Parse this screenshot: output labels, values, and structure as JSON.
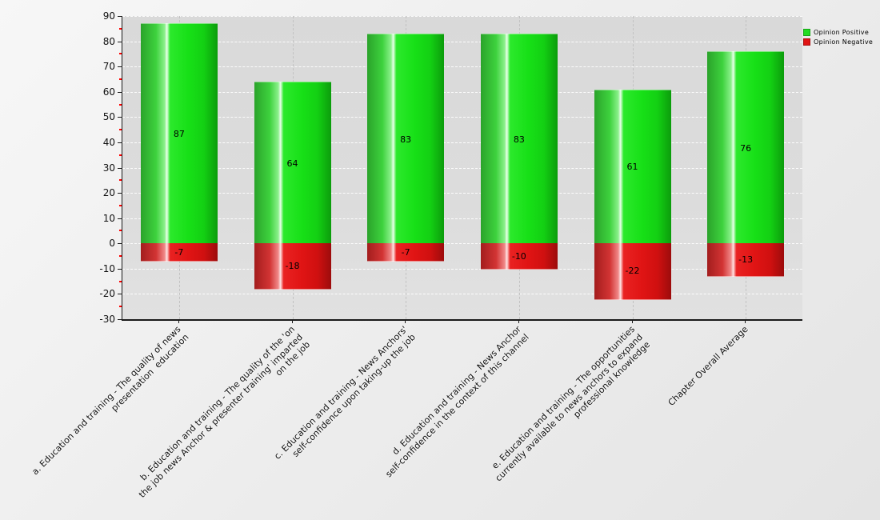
{
  "chart_data": {
    "type": "bar",
    "subtype": "stacked-positive-negative",
    "title": "",
    "xlabel": "",
    "ylabel": "",
    "ylim": [
      -30,
      90
    ],
    "yticks": [
      90,
      80,
      70,
      60,
      50,
      40,
      30,
      20,
      10,
      0,
      -10,
      -20,
      -30
    ],
    "ytick_step": 10,
    "grid": true,
    "legend_position": "top-right-outside",
    "categories": [
      [
        "a. Education and training - The quality of news",
        "presentation  education"
      ],
      [
        "b. Education and training - The quality of the 'on",
        "the job news Anchor & presenter training' imparted",
        "on the job"
      ],
      [
        "c. Education and training - News Anchors'",
        "self-confidence upon taking-up the job"
      ],
      [
        "d. Education and training - News Anchor",
        "self-confidence in the context of this channel"
      ],
      [
        "e. Education and training - The opportunities",
        "currently available to news anchors to expand",
        "professional knowledge"
      ],
      [
        "Chapter Overall Average"
      ]
    ],
    "series": [
      {
        "name": "Opinion Positive",
        "color": "#22dd22",
        "values": [
          87,
          64,
          83,
          83,
          61,
          76
        ]
      },
      {
        "name": "Opinion Negative",
        "color": "#e01414",
        "values": [
          -7,
          -18,
          -7,
          -10,
          -22,
          -13
        ]
      }
    ]
  },
  "colors": {
    "plot_background": "#dcdcdc",
    "page_background": "#ececec",
    "axis": "#1a1a1a",
    "horizontal_grid": "#f5f5f5",
    "vertical_grid": "#c2c2c2",
    "minor_tick": "#ff0000",
    "value_label": "#000000"
  }
}
